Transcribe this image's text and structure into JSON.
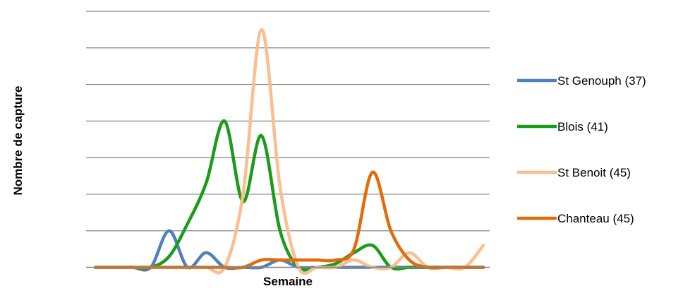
{
  "chart_data": {
    "type": "line",
    "title": "",
    "xlabel": "Semaine",
    "ylabel": "Nombre de capture",
    "ylim": [
      0,
      7
    ],
    "grid": true,
    "legend_position": "right",
    "n_weeks": 22,
    "series": [
      {
        "name": "St Genouph (37)",
        "color": "#4F81BD",
        "values": [
          0,
          0,
          0,
          0,
          1,
          0,
          0.4,
          0,
          0,
          0,
          0.2,
          0,
          0,
          0,
          0,
          0,
          0,
          0,
          0,
          0,
          0,
          0
        ]
      },
      {
        "name": "Blois (41)",
        "color": "#1A9C1A",
        "values": [
          0,
          0,
          0,
          0,
          0.3,
          1.2,
          2.3,
          4.0,
          1.8,
          3.6,
          1.0,
          0,
          0,
          0.1,
          0.4,
          0.6,
          0,
          0,
          0,
          0,
          0,
          0
        ]
      },
      {
        "name": "St Benoit (45)",
        "color": "#F9BF8F",
        "values": [
          0,
          0,
          0,
          0,
          0,
          0,
          0,
          0,
          2.0,
          6.5,
          2.2,
          0,
          0,
          0,
          0.2,
          0,
          0,
          0.4,
          0,
          0,
          0,
          0.6
        ]
      },
      {
        "name": "Chanteau (45)",
        "color": "#E36C0A",
        "values": [
          0,
          0,
          0,
          0,
          0,
          0,
          0,
          0,
          0,
          0.2,
          0.2,
          0.2,
          0.2,
          0.2,
          0.5,
          2.6,
          1.0,
          0.2,
          0,
          0,
          0,
          0
        ]
      }
    ]
  }
}
